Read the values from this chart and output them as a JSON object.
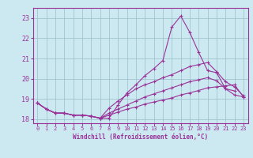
{
  "xlabel": "Windchill (Refroidissement éolien,°C)",
  "background_color": "#cce8f0",
  "grid_color": "#9bbfcc",
  "line_color": "#993399",
  "xlim": [
    -0.5,
    23.5
  ],
  "ylim": [
    17.8,
    23.5
  ],
  "yticks": [
    18,
    19,
    20,
    21,
    22,
    23
  ],
  "xticks": [
    0,
    1,
    2,
    3,
    4,
    5,
    6,
    7,
    8,
    9,
    10,
    11,
    12,
    13,
    14,
    15,
    16,
    17,
    18,
    19,
    20,
    21,
    22,
    23
  ],
  "line1_x": [
    0,
    1,
    2,
    3,
    4,
    5,
    6,
    7,
    8,
    9,
    10,
    11,
    12,
    13,
    14,
    15,
    16,
    17,
    18,
    19,
    20,
    21,
    22
  ],
  "line1_y": [
    18.8,
    18.5,
    18.3,
    18.3,
    18.2,
    18.2,
    18.15,
    18.05,
    18.05,
    18.7,
    19.3,
    19.7,
    20.15,
    20.5,
    20.9,
    22.55,
    23.1,
    22.3,
    21.3,
    20.4,
    20.3,
    19.5,
    19.4
  ],
  "line2_x": [
    0,
    1,
    2,
    3,
    4,
    5,
    6,
    7,
    8,
    9,
    10,
    11,
    12,
    13,
    14,
    15,
    16,
    17,
    18,
    19,
    20,
    21,
    22,
    23
  ],
  "line2_y": [
    18.8,
    18.5,
    18.3,
    18.3,
    18.2,
    18.2,
    18.15,
    18.05,
    18.55,
    18.9,
    19.2,
    19.5,
    19.7,
    19.85,
    20.05,
    20.2,
    20.4,
    20.6,
    20.7,
    20.8,
    20.35,
    19.85,
    19.6,
    19.15
  ],
  "line3_x": [
    0,
    1,
    2,
    3,
    4,
    5,
    6,
    7,
    8,
    9,
    10,
    11,
    12,
    13,
    14,
    15,
    16,
    17,
    18,
    19,
    20,
    21,
    22,
    23
  ],
  "line3_y": [
    18.8,
    18.5,
    18.3,
    18.3,
    18.2,
    18.2,
    18.15,
    18.05,
    18.3,
    18.5,
    18.7,
    18.9,
    19.1,
    19.25,
    19.4,
    19.55,
    19.7,
    19.85,
    19.95,
    20.05,
    19.9,
    19.5,
    19.2,
    19.1
  ],
  "line4_x": [
    0,
    1,
    2,
    3,
    4,
    5,
    6,
    7,
    8,
    9,
    10,
    11,
    12,
    13,
    14,
    15,
    16,
    17,
    18,
    19,
    20,
    21,
    22,
    23
  ],
  "line4_y": [
    18.8,
    18.5,
    18.3,
    18.3,
    18.2,
    18.2,
    18.15,
    18.05,
    18.2,
    18.35,
    18.5,
    18.6,
    18.75,
    18.85,
    18.95,
    19.05,
    19.2,
    19.3,
    19.42,
    19.55,
    19.6,
    19.65,
    19.7,
    19.1
  ]
}
